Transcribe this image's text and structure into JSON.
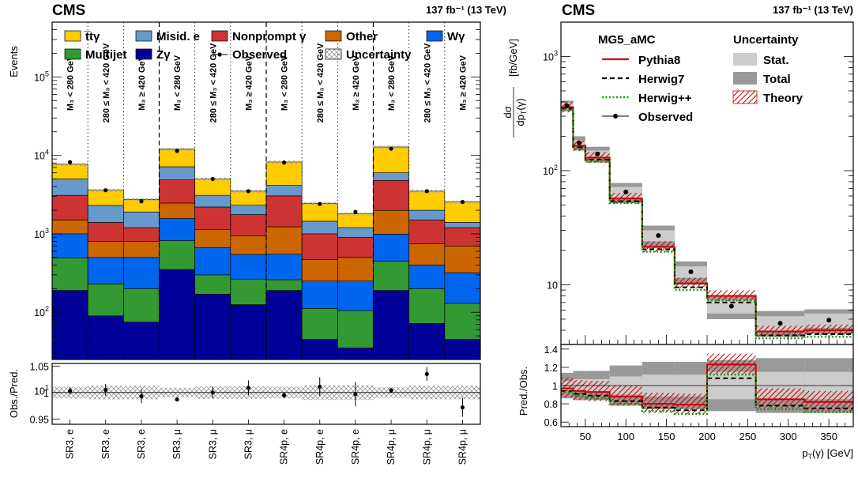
{
  "left": {
    "cms": "CMS",
    "lumi": "137 fb⁻¹ (13 TeV)",
    "ylabel": "Events",
    "ratio_ylabel": "Obs./Pred.",
    "region_labels": [
      "M₃ < 280 GeV",
      "280 ≤ M₃ < 420 GeV",
      "M₃ ≥ 420 GeV"
    ],
    "legend": [
      {
        "label": "t̅tγ",
        "color": "#ffcc00",
        "kind": "box"
      },
      {
        "label": "Misid. e",
        "color": "#6699cc",
        "kind": "box"
      },
      {
        "label": "Nonprompt γ",
        "color": "#cc3333",
        "kind": "box"
      },
      {
        "label": "Other",
        "color": "#cc6600",
        "kind": "box"
      },
      {
        "label": "Wγ",
        "color": "#0066ee",
        "kind": "box"
      },
      {
        "label": "Multijet",
        "color": "#339933",
        "kind": "box"
      },
      {
        "label": "Zγ",
        "color": "#000099",
        "kind": "box"
      },
      {
        "label": "Observed",
        "color": "#000000",
        "kind": "marker"
      },
      {
        "label": "Uncertainty",
        "color": "#888888",
        "kind": "hatch"
      }
    ]
  },
  "right": {
    "cms": "CMS",
    "lumi": "137 fb⁻¹ (13 TeV)",
    "ylabel_num": "dσ",
    "ylabel_den": "dp",
    "ylabel_unit": "[fb/GeV]",
    "ratio_ylabel": "Pred./Obs.",
    "xlabel": "p",
    "xlabel_unit": "[GeV]",
    "legend_gen_title": "MG5_aMC",
    "legend_unc_title": "Uncertainty",
    "legend_gen": [
      {
        "label": "Pythia8",
        "color": "#cc0000",
        "style": "solid"
      },
      {
        "label": "Herwig7",
        "color": "#000000",
        "style": "dashed"
      },
      {
        "label": "Herwig++",
        "color": "#119911",
        "style": "dotted"
      },
      {
        "label": "Observed",
        "color": "#000000",
        "style": "marker"
      }
    ],
    "legend_unc": [
      {
        "label": "Stat.",
        "color": "#cccccc",
        "kind": "box"
      },
      {
        "label": "Total",
        "color": "#999999",
        "kind": "box"
      },
      {
        "label": "Theory",
        "color": "#cc0000",
        "kind": "hatch"
      }
    ]
  },
  "chart_data": [
    {
      "type": "bar",
      "stacked": true,
      "y_scale": "log",
      "ylim": [
        25,
        500000
      ],
      "categories": [
        "SR3, e",
        "SR3, e",
        "SR3, e",
        "SR3, μ",
        "SR3, μ",
        "SR3, μ",
        "SR4p, e",
        "SR4p, e",
        "SR4p, e",
        "SR4p, μ",
        "SR4p, μ",
        "SR4p, μ"
      ],
      "series": [
        {
          "name": "Zγ",
          "color": "#000099",
          "values": [
            190,
            90,
            75,
            350,
            170,
            125,
            190,
            45,
            35,
            190,
            72,
            45
          ]
        },
        {
          "name": "Multijet",
          "color": "#339933",
          "values": [
            300,
            140,
            125,
            470,
            130,
            140,
            70,
            67,
            70,
            260,
            128,
            85
          ]
        },
        {
          "name": "Wγ",
          "color": "#0066ee",
          "values": [
            510,
            270,
            300,
            750,
            370,
            280,
            290,
            138,
            145,
            540,
            200,
            190
          ]
        },
        {
          "name": "Other",
          "color": "#cc6600",
          "values": [
            500,
            300,
            300,
            900,
            470,
            400,
            680,
            220,
            250,
            1000,
            350,
            380
          ]
        },
        {
          "name": "Nonprompt γ",
          "color": "#cc3333",
          "values": [
            1600,
            600,
            400,
            2400,
            1060,
            815,
            1820,
            530,
            400,
            2810,
            750,
            500
          ]
        },
        {
          "name": "Misid. e",
          "color": "#6699cc",
          "values": [
            1900,
            900,
            700,
            2300,
            900,
            560,
            1100,
            450,
            300,
            1200,
            500,
            200
          ]
        },
        {
          "name": "t̅tγ",
          "color": "#ffcc00",
          "values": [
            2700,
            1300,
            850,
            4800,
            1900,
            1180,
            4100,
            1000,
            600,
            6800,
            1500,
            1150
          ]
        }
      ],
      "observed": [
        8200,
        3600,
        2600,
        11400,
        5000,
        3500,
        8100,
        2400,
        1900,
        12200,
        3500,
        2550
      ],
      "ratio": {
        "ylim": [
          0.94,
          1.055
        ],
        "values": [
          1.003,
          1.005,
          0.993,
          0.987,
          1.0,
          1.009,
          0.995,
          1.011,
          0.997,
          1.004,
          1.035,
          0.972
        ],
        "errors": [
          0.007,
          0.011,
          0.013,
          0.004,
          0.011,
          0.014,
          0.006,
          0.018,
          0.023,
          0.005,
          0.013,
          0.018
        ],
        "band": [
          0.011,
          0.013,
          0.013,
          0.009,
          0.012,
          0.012,
          0.011,
          0.014,
          0.014,
          0.01,
          0.013,
          0.013
        ]
      }
    },
    {
      "type": "line",
      "step": true,
      "y_scale": "log",
      "ylim": [
        3,
        2000
      ],
      "xlim": [
        20,
        380
      ],
      "xticks": [
        50,
        100,
        150,
        200,
        250,
        300,
        350
      ],
      "yticks": [
        10,
        100,
        1000
      ],
      "x_edges": [
        20,
        35,
        50,
        80,
        120,
        160,
        200,
        260,
        320,
        380
      ],
      "observed": {
        "x": [
          27.5,
          42.5,
          65,
          100,
          140,
          180,
          230,
          290,
          350
        ],
        "y": [
          370,
          175,
          140,
          65,
          27,
          13,
          6.5,
          4.6,
          4.9
        ]
      },
      "stat_band": [
        [
          350,
          395
        ],
        [
          165,
          185
        ],
        [
          130,
          150
        ],
        [
          58,
          72
        ],
        [
          24,
          30
        ],
        [
          11.5,
          14.5
        ],
        [
          5.6,
          7.4
        ],
        [
          3.9,
          5.3
        ],
        [
          4.2,
          5.6
        ]
      ],
      "total_band": [
        [
          330,
          410
        ],
        [
          150,
          200
        ],
        [
          118,
          162
        ],
        [
          52,
          78
        ],
        [
          21,
          33
        ],
        [
          10,
          16
        ],
        [
          5,
          8
        ],
        [
          3.5,
          5.9
        ],
        [
          3.7,
          6.1
        ]
      ],
      "series": [
        {
          "name": "Pythia8",
          "color": "#cc0000",
          "values": [
            360,
            165,
            130,
            57,
            21.5,
            10.3,
            8.0,
            3.9,
            4.0
          ]
        },
        {
          "name": "Herwig7",
          "color": "#000000",
          "values": [
            350,
            160,
            125,
            54,
            20.5,
            9.5,
            7.0,
            3.6,
            3.7
          ]
        },
        {
          "name": "Herwig++",
          "color": "#119911",
          "values": [
            345,
            155,
            120,
            52,
            19.5,
            9.0,
            7.3,
            3.4,
            3.5
          ]
        }
      ],
      "ratio": {
        "ylim": [
          0.55,
          1.45
        ],
        "yticks": [
          0.6,
          0.8,
          1.0,
          1.2,
          1.4
        ],
        "stat_band": [
          [
            0.95,
            1.05
          ],
          [
            0.93,
            1.07
          ],
          [
            0.93,
            1.07
          ],
          [
            0.9,
            1.1
          ],
          [
            0.88,
            1.12
          ],
          [
            0.88,
            1.12
          ],
          [
            0.85,
            1.15
          ],
          [
            0.85,
            1.15
          ],
          [
            0.85,
            1.15
          ]
        ],
        "total_band": [
          [
            0.86,
            1.14
          ],
          [
            0.84,
            1.16
          ],
          [
            0.84,
            1.16
          ],
          [
            0.78,
            1.22
          ],
          [
            0.74,
            1.26
          ],
          [
            0.74,
            1.26
          ],
          [
            0.72,
            1.28
          ],
          [
            0.7,
            1.3
          ],
          [
            0.7,
            1.3
          ]
        ],
        "pythia": [
          0.97,
          0.94,
          0.93,
          0.88,
          0.8,
          0.79,
          1.23,
          0.85,
          0.82
        ],
        "herwig7": [
          0.94,
          0.91,
          0.89,
          0.83,
          0.76,
          0.73,
          1.08,
          0.78,
          0.75
        ],
        "herwigpp": [
          0.93,
          0.89,
          0.86,
          0.8,
          0.72,
          0.69,
          1.12,
          0.74,
          0.71
        ]
      }
    }
  ]
}
